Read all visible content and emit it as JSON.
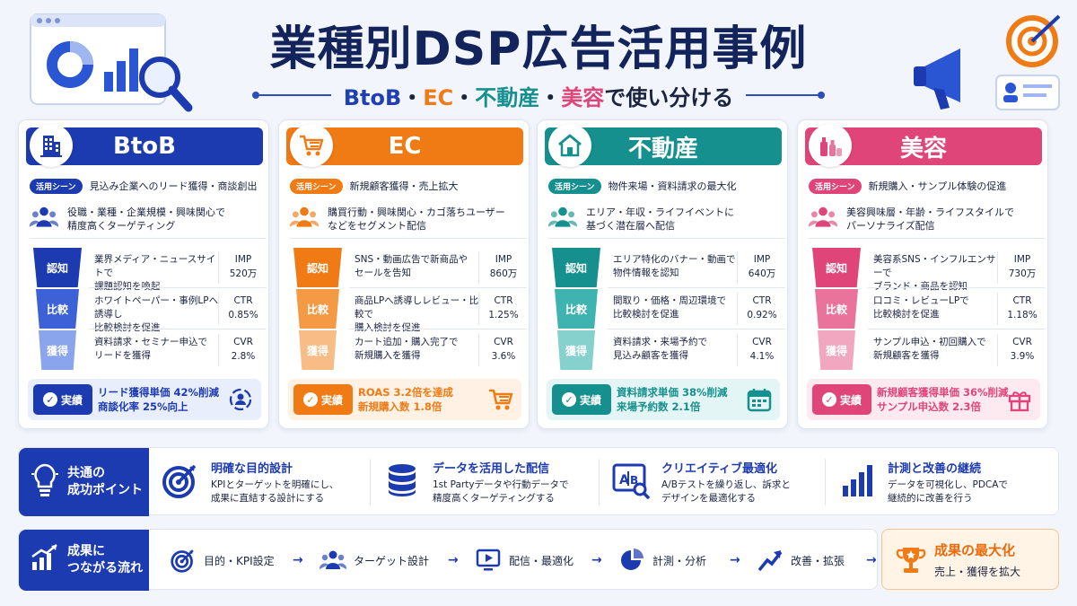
{
  "title": "業種別DSP広告活用事例",
  "subtitle": {
    "parts": [
      "BtoB",
      "・",
      "EC",
      "・",
      "不動産",
      "・",
      "美容",
      "で使い分ける"
    ]
  },
  "scene_tag": "活用シーン",
  "result_badge": "実績",
  "colors": {
    "btob": "#1d3bb0",
    "ec": "#f07a14",
    "realestate": "#15908f",
    "beauty": "#e0457a",
    "navy": "#13245c"
  },
  "cards": [
    {
      "name": "BtoB",
      "icon": "building-icon",
      "scene": "見込み企業へのリード獲得・商談創出",
      "target": [
        "役職・業種・企業規模・興味関心で",
        "精度高くターゲティング"
      ],
      "funnel": [
        {
          "stage": "認知",
          "desc": [
            "業界メディア・ニュースサイトで",
            "課題認知を喚起"
          ],
          "metric": "IMP",
          "value": "520万"
        },
        {
          "stage": "比較",
          "desc": [
            "ホワイトペーパー・事例LPへ誘導し",
            "比較検討を促進"
          ],
          "metric": "CTR",
          "value": "0.85%"
        },
        {
          "stage": "獲得",
          "desc": [
            "資料請求・セミナー申込で",
            "リードを獲得"
          ],
          "metric": "CVR",
          "value": "2.8%"
        }
      ],
      "result": [
        "リード獲得単価 42%削減",
        "商談化率 25%向上"
      ],
      "result_icon": "target-user-icon"
    },
    {
      "name": "EC",
      "icon": "cart-icon",
      "scene": "新規顧客獲得・売上拡大",
      "target": [
        "購買行動・興味関心・カゴ落ちユーザー",
        "などをセグメント配信"
      ],
      "funnel": [
        {
          "stage": "認知",
          "desc": [
            "SNS・動画広告で新商品や",
            "セールを告知"
          ],
          "metric": "IMP",
          "value": "860万"
        },
        {
          "stage": "比較",
          "desc": [
            "商品LPへ誘導しレビュー・比較で",
            "購入検討を促進"
          ],
          "metric": "CTR",
          "value": "1.25%"
        },
        {
          "stage": "獲得",
          "desc": [
            "カート追加・購入完了で",
            "新規購入を獲得"
          ],
          "metric": "CVR",
          "value": "3.6%"
        }
      ],
      "result": [
        "ROAS 3.2倍を達成",
        "新規購入数 1.8倍"
      ],
      "result_icon": "cart-icon"
    },
    {
      "name": "不動産",
      "icon": "house-icon",
      "scene": "物件来場・資料請求の最大化",
      "target": [
        "エリア・年収・ライフイベントに",
        "基づく潜在層へ配信"
      ],
      "funnel": [
        {
          "stage": "認知",
          "desc": [
            "エリア特化のバナー・動画で",
            "物件情報を認知"
          ],
          "metric": "IMP",
          "value": "640万"
        },
        {
          "stage": "比較",
          "desc": [
            "間取り・価格・周辺環境で",
            "比較検討を促進"
          ],
          "metric": "CTR",
          "value": "0.92%"
        },
        {
          "stage": "獲得",
          "desc": [
            "資料請求・来場予約で",
            "見込み顧客を獲得"
          ],
          "metric": "CVR",
          "value": "4.1%"
        }
      ],
      "result": [
        "資料請求単価 38%削減",
        "来場予約数 2.1倍"
      ],
      "result_icon": "calendar-icon"
    },
    {
      "name": "美容",
      "icon": "cosmetics-icon",
      "scene": "新規購入・サンプル体験の促進",
      "target": [
        "美容興味層・年齢・ライフスタイルで",
        "パーソナライズ配信"
      ],
      "funnel": [
        {
          "stage": "認知",
          "desc": [
            "美容系SNS・インフルエンサーで",
            "ブランド・商品を認知"
          ],
          "metric": "IMP",
          "value": "730万"
        },
        {
          "stage": "比較",
          "desc": [
            "口コミ・レビューLPで",
            "比較検討を促進"
          ],
          "metric": "CTR",
          "value": "1.18%"
        },
        {
          "stage": "獲得",
          "desc": [
            "サンプル申込・初回購入で",
            "新規顧客を獲得"
          ],
          "metric": "CVR",
          "value": "3.9%"
        }
      ],
      "result": [
        "新規顧客獲得単価 36%削減",
        "サンプル申込数 2.3倍"
      ],
      "result_icon": "gift-icon"
    }
  ],
  "common": {
    "label": [
      "共通の",
      "成功ポイント"
    ],
    "points": [
      {
        "title": "明確な目的設計",
        "desc": [
          "KPIとターゲットを明確にし、",
          "成果に直結する設計にする"
        ],
        "icon": "target-arrow-icon"
      },
      {
        "title": "データを活用した配信",
        "desc": [
          "1st Partyデータや行動データで",
          "精度高くターゲティングする"
        ],
        "icon": "database-icon"
      },
      {
        "title": "クリエイティブ最適化",
        "desc": [
          "A/Bテストを繰り返し、訴求と",
          "デザインを最適化する"
        ],
        "icon": "ab-test-icon"
      },
      {
        "title": "計測と改善の継続",
        "desc": [
          "データを可視化し、PDCAで",
          "継続的に改善を行う"
        ],
        "icon": "bar-chart-icon"
      }
    ]
  },
  "flow": {
    "label": [
      "成果に",
      "つながる流れ"
    ],
    "steps": [
      {
        "label": "目的・KPI設定",
        "icon": "target-arrow-icon"
      },
      {
        "label": "ターゲット設計",
        "icon": "users-icon"
      },
      {
        "label": "配信・最適化",
        "icon": "play-screen-icon"
      },
      {
        "label": "計測・分析",
        "icon": "pie-chart-icon"
      },
      {
        "label": "改善・拡張",
        "icon": "growth-arrow-icon"
      }
    ],
    "arrow": "→",
    "final": {
      "title": "成果の最大化",
      "desc": "売上・獲得を拡大",
      "icon": "trophy-icon"
    }
  }
}
